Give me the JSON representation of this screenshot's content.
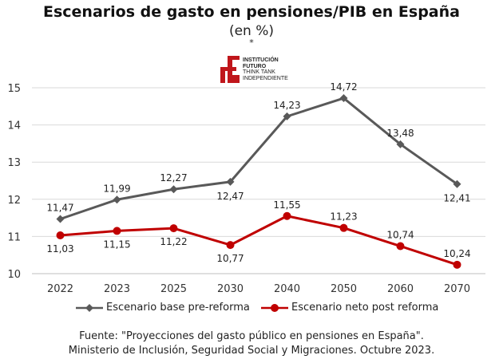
{
  "header": {
    "title": "Escenarios de gasto en pensiones/PIB en España",
    "subtitle": "(en %)",
    "asterisk": "*"
  },
  "logo": {
    "line1": "INSTITUCIÓN",
    "line2": "FUTURO",
    "line3": "THINK TANK",
    "line4": "INDEPENDIENTE",
    "color": "#c0161b"
  },
  "chart_data": {
    "type": "line",
    "categories": [
      "2022",
      "2023",
      "2025",
      "2030",
      "2040",
      "2050",
      "2060",
      "2070"
    ],
    "series": [
      {
        "name": "Escenario base pre-reforma",
        "values": [
          11.47,
          11.99,
          12.27,
          12.47,
          14.23,
          14.72,
          13.48,
          12.41
        ],
        "labels": [
          "11,47",
          "11,99",
          "12,27",
          "12,47",
          "14,23",
          "14,72",
          "13,48",
          "12,41"
        ],
        "color": "#595959",
        "marker": "diamond"
      },
      {
        "name": "Escenario neto post reforma",
        "values": [
          11.03,
          11.15,
          11.22,
          10.77,
          11.55,
          11.23,
          10.74,
          10.24
        ],
        "labels": [
          "11,03",
          "11,15",
          "11,22",
          "10,77",
          "11,55",
          "11,23",
          "10,74",
          "10,24"
        ],
        "color": "#c00000",
        "marker": "circle"
      }
    ],
    "ylim": [
      10,
      15
    ],
    "yticks": [
      "10",
      "11",
      "12",
      "13",
      "14",
      "15"
    ],
    "grid": true,
    "legend": "bottom"
  },
  "source": {
    "line1": "Fuente: \"Proyecciones del gasto público en pensiones en España\".",
    "line2": "Ministerio de Inclusión, Seguridad Social y Migraciones. Octubre 2023."
  }
}
